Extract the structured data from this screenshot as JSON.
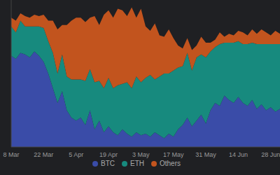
{
  "chart_data": {
    "type": "area",
    "stacked": true,
    "legend": "bottom",
    "tick_labels": "x",
    "categories": [
      "8 Mar",
      null,
      null,
      null,
      null,
      null,
      null,
      "22 Mar",
      null,
      null,
      null,
      null,
      null,
      null,
      "5 Apr",
      null,
      null,
      null,
      null,
      null,
      null,
      "19 Apr",
      null,
      null,
      null,
      null,
      null,
      null,
      "3 May",
      null,
      null,
      null,
      null,
      null,
      null,
      "17 May",
      null,
      null,
      null,
      null,
      null,
      null,
      "31 May",
      null,
      null,
      null,
      null,
      null,
      null,
      "14 Jun",
      null,
      null,
      null,
      null,
      null,
      null,
      "28 Jun",
      null,
      null
    ],
    "ylim": [
      0,
      100
    ],
    "series": [
      {
        "name": "BTC",
        "color": "#3a4ca8",
        "values": [
          62,
          60,
          64,
          63,
          61,
          65,
          62,
          58,
          50,
          40,
          30,
          38,
          25,
          20,
          18,
          20,
          15,
          25,
          12,
          18,
          10,
          14,
          10,
          8,
          12,
          9,
          7,
          10,
          8,
          9,
          7,
          10,
          8,
          6,
          9,
          7,
          12,
          15,
          20,
          14,
          18,
          22,
          16,
          25,
          30,
          28,
          35,
          32,
          30,
          34,
          30,
          28,
          32,
          26,
          29,
          25,
          27,
          24,
          26
        ]
      },
      {
        "name": "ETH",
        "color": "#178a7e",
        "values": [
          20,
          18,
          22,
          19,
          21,
          17,
          20,
          23,
          22,
          24,
          20,
          25,
          23,
          26,
          28,
          26,
          30,
          28,
          32,
          27,
          30,
          33,
          30,
          34,
          31,
          35,
          33,
          38,
          36,
          38,
          42,
          36,
          40,
          44,
          41,
          45,
          42,
          40,
          44,
          38,
          43,
          41,
          45,
          40,
          38,
          42,
          36,
          39,
          41,
          38,
          40,
          42,
          39,
          44,
          41,
          45,
          43,
          46,
          44
        ]
      },
      {
        "name": "Others",
        "color": "#c2541e",
        "values": [
          6,
          8,
          5,
          7,
          6,
          8,
          7,
          9,
          14,
          22,
          30,
          20,
          35,
          40,
          42,
          42,
          40,
          35,
          45,
          38,
          50,
          46,
          48,
          52,
          50,
          45,
          55,
          40,
          50,
          35,
          30,
          38,
          28,
          25,
          30,
          22,
          15,
          12,
          10,
          14,
          8,
          12,
          10,
          6,
          5,
          8,
          4,
          6,
          5,
          7,
          8,
          6,
          9,
          7,
          10,
          8,
          6,
          9,
          7
        ]
      }
    ]
  }
}
